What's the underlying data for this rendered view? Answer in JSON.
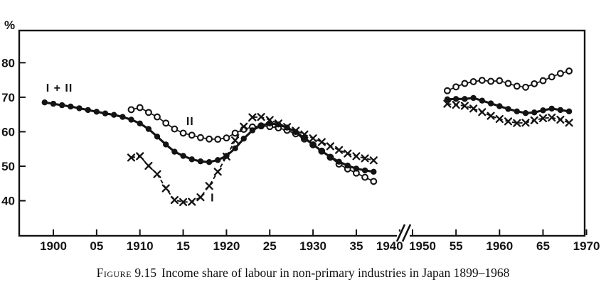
{
  "caption": {
    "label": "Figure",
    "number": "9.15",
    "title": "Income share of labour in non-primary industries in Japan 1899–1968"
  },
  "chart_data": {
    "type": "line",
    "title": "",
    "xlabel": "",
    "ylabel": "%",
    "ylim": [
      30,
      89.5
    ],
    "yticks": [
      40,
      50,
      60,
      70,
      80
    ],
    "grid": false,
    "legend_position": "inline-labels",
    "ink_color": "#131313",
    "background": "#ffffff",
    "x_break": {
      "after": 1940,
      "before": 1950
    },
    "xticks": [
      {
        "year": 1900,
        "label": "1900"
      },
      {
        "year": 1905,
        "label": "05"
      },
      {
        "year": 1910,
        "label": "1910"
      },
      {
        "year": 1915,
        "label": "15"
      },
      {
        "year": 1920,
        "label": "1920"
      },
      {
        "year": 1925,
        "label": "25"
      },
      {
        "year": 1930,
        "label": "1930"
      },
      {
        "year": 1935,
        "label": "35"
      },
      {
        "year": 1940,
        "label": "1940",
        "dx": -14
      },
      {
        "year": 1950,
        "label": "1950",
        "dx": 14
      },
      {
        "year": 1955,
        "label": "55"
      },
      {
        "year": 1960,
        "label": "1960"
      },
      {
        "year": 1965,
        "label": "65"
      },
      {
        "year": 1970,
        "label": "1970"
      }
    ],
    "series": [
      {
        "name": "II",
        "marker": "open-circle",
        "line_style": "solid",
        "label": {
          "text": "II",
          "year": 1915.8,
          "value": 61.9
        },
        "segments": [
          {
            "start_year": 1909,
            "values": [
              66.4,
              67.0,
              65.6,
              64.3,
              62.5,
              60.8,
              59.6,
              59.0,
              58.3,
              57.9,
              57.8,
              58.2,
              59.6,
              60.7,
              61.4,
              61.7,
              61.5,
              61.1,
              60.4,
              59.4,
              57.9,
              56.2,
              54.4,
              52.6,
              50.6,
              49.2,
              48.0,
              46.8,
              45.6
            ]
          },
          {
            "start_year": 1954,
            "values": [
              71.9,
              73.0,
              74.0,
              74.5,
              74.9,
              74.6,
              74.8,
              74.0,
              73.2,
              72.9,
              73.9,
              74.8,
              75.9,
              76.9,
              77.6
            ]
          }
        ]
      },
      {
        "name": "I + II",
        "marker": "filled-circle",
        "line_style": "solid-thick",
        "label": {
          "text": "I + II",
          "year": 1900.7,
          "value": 71.6
        },
        "segments": [
          {
            "start_year": 1899,
            "values": [
              68.5,
              68.1,
              67.7,
              67.3,
              66.8,
              66.3,
              65.8,
              65.3,
              64.9,
              64.3,
              63.5,
              62.4,
              60.8,
              58.6,
              56.3,
              54.2,
              53.0,
              52.0,
              51.4,
              51.2,
              51.8,
              53.0,
              55.2,
              58.0,
              60.4,
              61.8,
              62.4,
              62.1,
              61.2,
              59.9,
              58.2,
              56.3,
              54.4,
              52.7,
              51.3,
              50.2,
              49.3,
              48.8,
              48.4
            ]
          },
          {
            "start_year": 1954,
            "values": [
              69.4,
              69.5,
              69.5,
              69.8,
              69.0,
              68.2,
              67.4,
              66.6,
              65.9,
              65.4,
              65.6,
              66.2,
              66.7,
              66.3,
              65.9
            ]
          }
        ]
      },
      {
        "name": "I",
        "marker": "x",
        "line_style": "dashed",
        "label": {
          "text": "I",
          "year": 1918.4,
          "value": 39.8
        },
        "segments": [
          {
            "start_year": 1909,
            "values": [
              52.5,
              52.9,
              50.1,
              47.7,
              43.6,
              40.2,
              39.6,
              39.7,
              41.0,
              44.3,
              48.4,
              52.8,
              57.5,
              61.5,
              64.2,
              64.3,
              63.4,
              62.4,
              61.4,
              60.3,
              59.2,
              58.1,
              57.0,
              55.8,
              54.7,
              53.7,
              52.9,
              52.3,
              51.7
            ]
          },
          {
            "start_year": 1954,
            "values": [
              68.1,
              67.8,
              67.5,
              66.7,
              65.7,
              64.6,
              63.7,
              63.0,
              62.5,
              62.6,
              63.3,
              63.9,
              64.1,
              63.5,
              62.6
            ]
          }
        ]
      }
    ]
  }
}
